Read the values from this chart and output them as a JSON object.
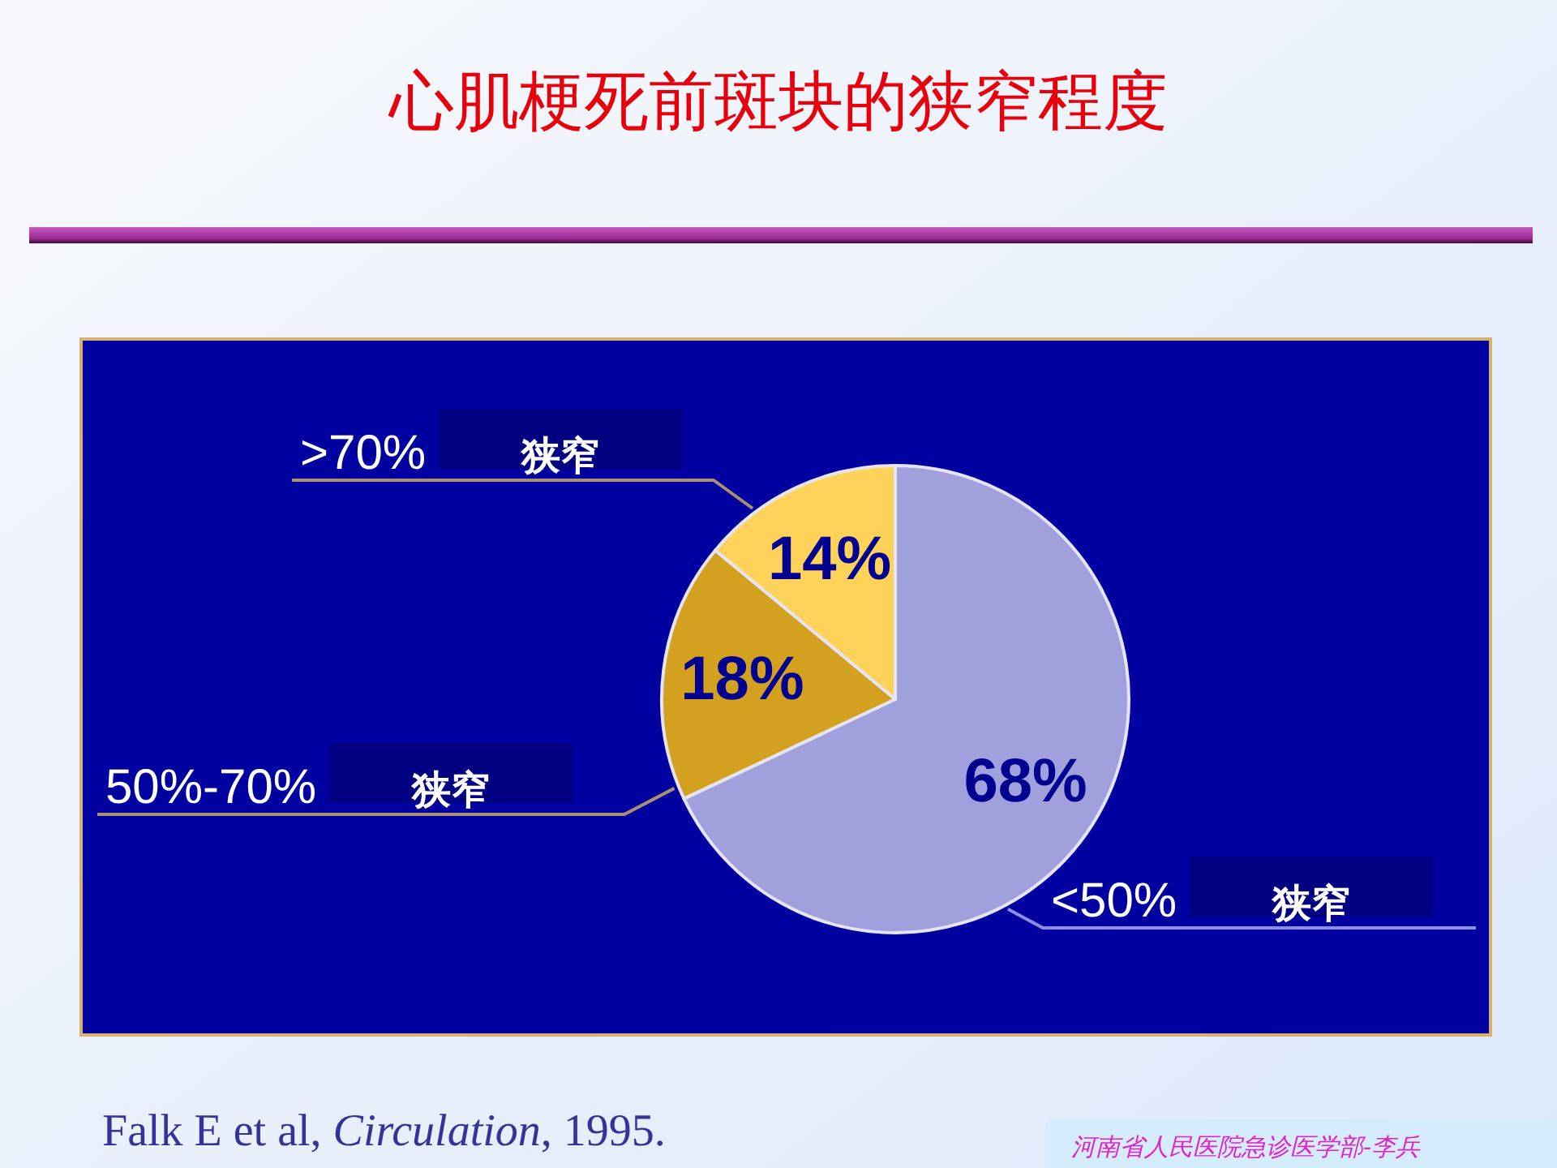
{
  "chart_data": {
    "type": "pie",
    "title": "心肌梗死前斑块的狭窄程度",
    "categories": [
      "<50% 狭窄",
      "50%-70% 狭窄",
      ">70% 狭窄"
    ],
    "values": [
      68,
      18,
      14
    ],
    "colors": [
      "#a0a0dc",
      "#d4a020",
      "#ffd35a"
    ],
    "value_labels": [
      "68%",
      "18%",
      "14%"
    ],
    "annotations": [
      "Falk E et al, Circulation, 1995.",
      "河南省人民医院急诊医学部-李兵"
    ]
  }
}
